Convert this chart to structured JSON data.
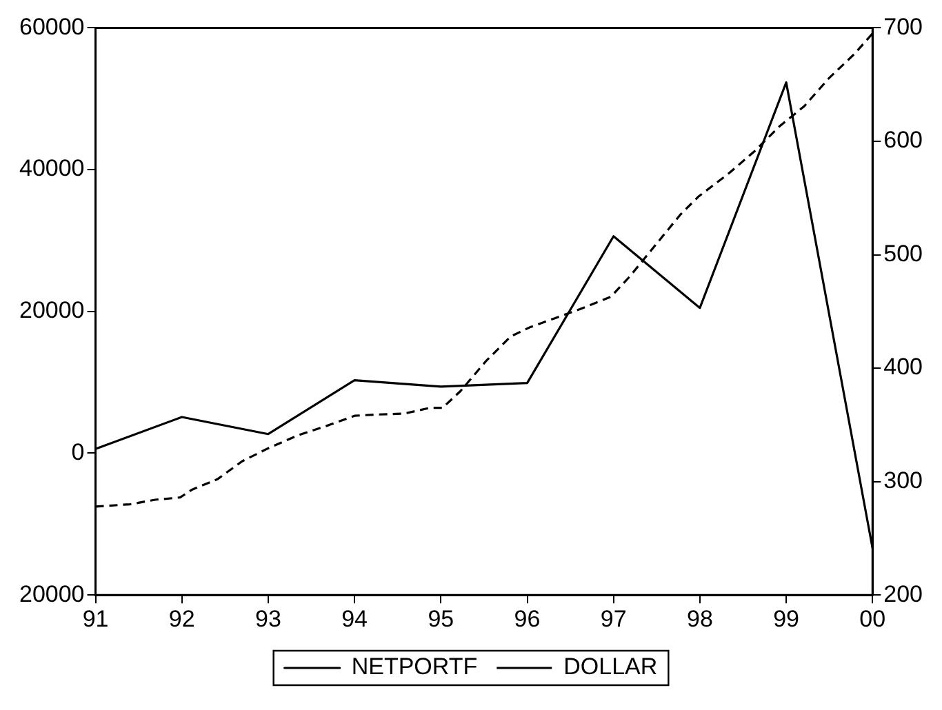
{
  "chart_data": {
    "type": "line",
    "xlim": [
      1991,
      2000
    ],
    "xticks": [
      {
        "value": 1991,
        "label": "91"
      },
      {
        "value": 1992,
        "label": "92"
      },
      {
        "value": 1993,
        "label": "93"
      },
      {
        "value": 1994,
        "label": "94"
      },
      {
        "value": 1995,
        "label": "95"
      },
      {
        "value": 1996,
        "label": "96"
      },
      {
        "value": 1997,
        "label": "97"
      },
      {
        "value": 1998,
        "label": "98"
      },
      {
        "value": 1999,
        "label": "99"
      },
      {
        "value": 2000,
        "label": "00"
      }
    ],
    "ylim": [
      -20000,
      60000
    ],
    "yticks": [
      {
        "value": -20000,
        "label": "20000"
      },
      0,
      20000,
      40000,
      60000
    ],
    "y2lim": [
      200,
      700
    ],
    "y2ticks": [
      200,
      300,
      400,
      500,
      600,
      700
    ],
    "grid": false,
    "legend": "bottom",
    "marker": "none",
    "series": [
      {
        "name": "NETPORTF",
        "color": "#000000",
        "line_style": "solid",
        "x": [
          1991,
          1992,
          1993,
          1994,
          1995,
          1996,
          1997,
          1998,
          1999,
          2000
        ],
        "values": [
          600,
          5100,
          2700,
          10300,
          9400,
          9900,
          30600,
          20500,
          52300,
          -13400
        ]
      },
      {
        "name": "DOLLAR",
        "color": "#000000",
        "line_style": "dashed",
        "axis": "y2",
        "x": [
          1991,
          1991.4,
          1991.69,
          1991.98,
          1992.12,
          1992.41,
          1992.7,
          1992.99,
          1993.35,
          1993.71,
          1994,
          1994.22,
          1994.58,
          1994.87,
          1995.02,
          1995.23,
          1995.52,
          1995.81,
          1996.03,
          1996.32,
          1996.61,
          1996.97,
          1997.19,
          1997.48,
          1997.77,
          1997.98,
          1998.34,
          1998.63,
          1998.92,
          1999.21,
          1999.5,
          1999.79,
          2000
        ],
        "values": [
          278,
          280,
          284,
          286,
          293,
          302,
          318,
          329,
          341,
          350,
          358,
          359,
          360,
          365,
          365,
          380,
          406,
          428,
          436,
          444,
          452,
          463,
          481,
          508,
          535,
          551,
          572,
          591,
          613,
          631,
          656,
          677,
          695
        ]
      }
    ]
  }
}
